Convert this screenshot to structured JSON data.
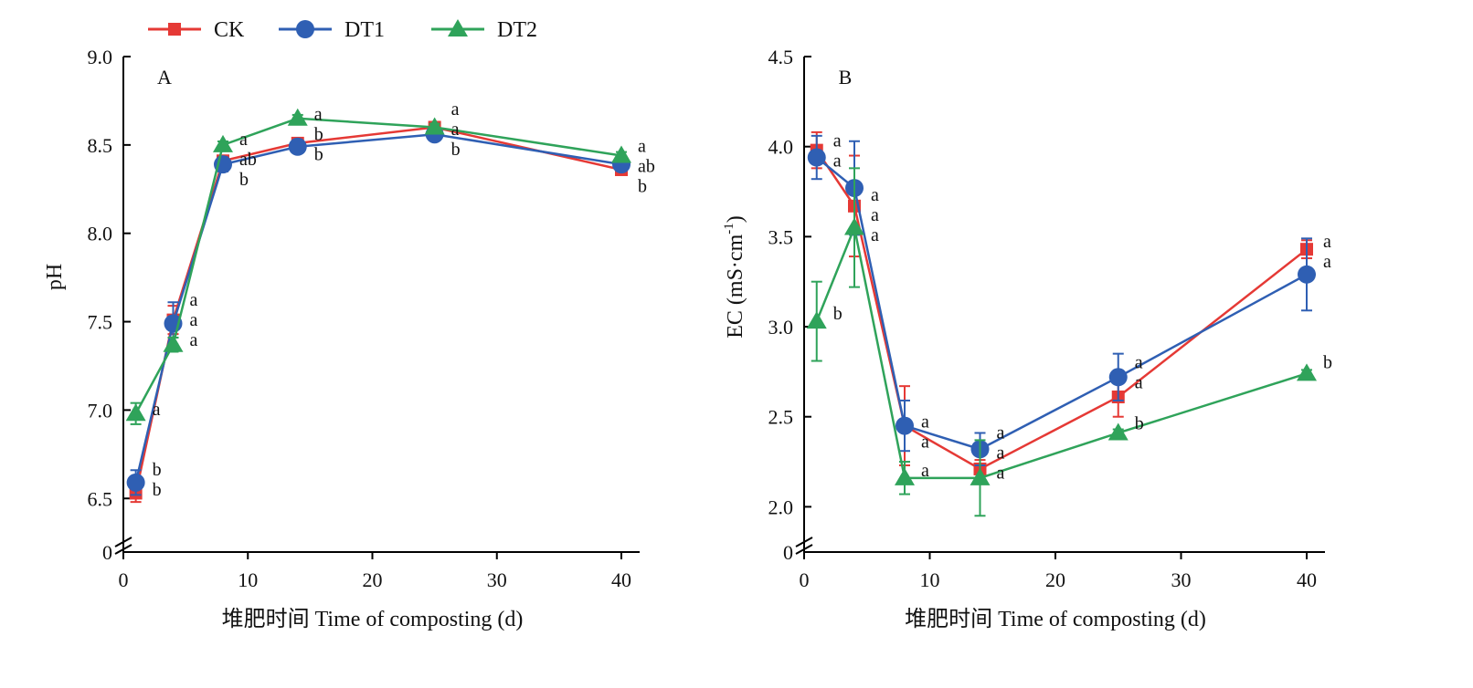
{
  "legend": {
    "placement": "top-left",
    "items": [
      {
        "name": "CK",
        "color": "#e53935",
        "marker": "square"
      },
      {
        "name": "DT1",
        "color": "#2f5fb3",
        "marker": "circle"
      },
      {
        "name": "DT2",
        "color": "#2fa35a",
        "marker": "triangle"
      }
    ]
  },
  "chart_data": [
    {
      "type": "line",
      "panel_label": "A",
      "xlabel": "堆肥时间 Time of composting (d)",
      "ylabel": "pH",
      "xlim": [
        0,
        40
      ],
      "ylim": [
        6.3,
        9.0
      ],
      "axis_break": true,
      "break_label": "0",
      "x_ticks": [
        0,
        10,
        20,
        30,
        40
      ],
      "y_ticks": [
        6.5,
        7.0,
        7.5,
        8.0,
        8.5,
        9.0
      ],
      "y_tick_labels": [
        "6.5",
        "7.0",
        "7.5",
        "8.0",
        "8.5",
        "9.0"
      ],
      "grid": false,
      "x": [
        1,
        4,
        8,
        14,
        25,
        40
      ],
      "series": [
        {
          "name": "CK",
          "color": "#e53935",
          "marker": "square",
          "values": [
            6.53,
            7.51,
            8.41,
            8.51,
            8.6,
            8.36
          ],
          "errors": [
            0.05,
            0.08,
            0.03,
            0.02,
            0.02,
            0.02
          ]
        },
        {
          "name": "DT1",
          "color": "#2f5fb3",
          "marker": "circle",
          "values": [
            6.59,
            7.49,
            8.39,
            8.49,
            8.56,
            8.39
          ],
          "errors": [
            0.07,
            0.12,
            0.04,
            0.02,
            0.02,
            0.02
          ]
        },
        {
          "name": "DT2",
          "color": "#2fa35a",
          "marker": "triangle",
          "values": [
            6.98,
            7.37,
            8.5,
            8.65,
            8.6,
            8.44
          ],
          "errors": [
            0.06,
            0.04,
            0.02,
            0.02,
            0.02,
            0.02
          ]
        }
      ],
      "annotations": [
        {
          "x": 1,
          "lines": [
            "a"
          ],
          "y": 6.97
        },
        {
          "x": 1,
          "lines": [
            "b",
            "b"
          ],
          "y": 6.63
        },
        {
          "x": 4,
          "lines": [
            "a",
            "a",
            "a"
          ],
          "y": 7.59
        },
        {
          "x": 8,
          "lines": [
            "a",
            "ab",
            "b"
          ],
          "y": 8.5
        },
        {
          "x": 14,
          "lines": [
            "a",
            "b",
            "b"
          ],
          "y": 8.64
        },
        {
          "x": 25,
          "lines": [
            "a",
            "a",
            "b"
          ],
          "y": 8.67
        },
        {
          "x": 40,
          "lines": [
            "a",
            "ab",
            "b"
          ],
          "y": 8.46
        }
      ]
    },
    {
      "type": "line",
      "panel_label": "B",
      "xlabel": "堆肥时间 Time of composting (d)",
      "ylabel": "EC (mS·cm",
      "ylabel_sup": "-1",
      "ylabel_end": ")",
      "xlim": [
        0,
        40
      ],
      "ylim": [
        1.85,
        4.5
      ],
      "axis_break": true,
      "break_label": "0",
      "x_ticks": [
        0,
        10,
        20,
        30,
        40
      ],
      "y_ticks": [
        2.0,
        2.5,
        3.0,
        3.5,
        4.0,
        4.5
      ],
      "y_tick_labels": [
        "2.0",
        "2.5",
        "3.0",
        "3.5",
        "4.0",
        "4.5"
      ],
      "grid": false,
      "x": [
        1,
        4,
        8,
        14,
        25,
        40
      ],
      "series": [
        {
          "name": "CK",
          "color": "#e53935",
          "marker": "square",
          "values": [
            3.98,
            3.67,
            2.45,
            2.21,
            2.61,
            3.43
          ],
          "errors": [
            0.1,
            0.28,
            0.22,
            0.05,
            0.11,
            0.05
          ]
        },
        {
          "name": "DT1",
          "color": "#2f5fb3",
          "marker": "circle",
          "values": [
            3.94,
            3.77,
            2.45,
            2.32,
            2.72,
            3.29
          ],
          "errors": [
            0.12,
            0.26,
            0.14,
            0.09,
            0.13,
            0.2
          ]
        },
        {
          "name": "DT2",
          "color": "#2fa35a",
          "marker": "triangle",
          "values": [
            3.03,
            3.55,
            2.16,
            2.16,
            2.41,
            2.74
          ],
          "errors": [
            0.22,
            0.33,
            0.09,
            0.21,
            0.02,
            0.02
          ]
        }
      ],
      "annotations": [
        {
          "x": 1,
          "lines": [
            "a",
            "a"
          ],
          "y": 4.0
        },
        {
          "x": 1,
          "lines": [
            "b"
          ],
          "y": 3.04
        },
        {
          "x": 4,
          "lines": [
            "a",
            "a",
            "a"
          ],
          "y": 3.7
        },
        {
          "x": 8,
          "lines": [
            "a",
            "a"
          ],
          "y": 2.44
        },
        {
          "x": 8,
          "lines": [
            "a"
          ],
          "y": 2.17
        },
        {
          "x": 14,
          "lines": [
            "a",
            "a",
            "a"
          ],
          "y": 2.38
        },
        {
          "x": 25,
          "lines": [
            "a",
            "a"
          ],
          "y": 2.77
        },
        {
          "x": 25,
          "lines": [
            "b"
          ],
          "y": 2.43
        },
        {
          "x": 40,
          "lines": [
            "a",
            "a"
          ],
          "y": 3.44
        },
        {
          "x": 40,
          "lines": [
            "b"
          ],
          "y": 2.77
        }
      ]
    }
  ]
}
